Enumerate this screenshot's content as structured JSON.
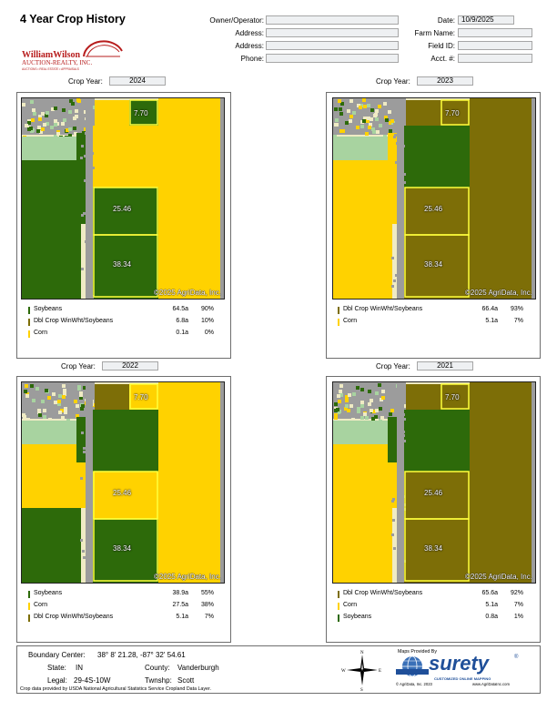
{
  "title": "4 Year Crop History",
  "header": {
    "left": [
      {
        "label": "Owner/Operator:",
        "value": ""
      },
      {
        "label": "Address:",
        "value": ""
      },
      {
        "label": "Address:",
        "value": ""
      },
      {
        "label": "Phone:",
        "value": ""
      }
    ],
    "right": [
      {
        "label": "Date:",
        "value": "10/9/2025"
      },
      {
        "label": "Farm Name:",
        "value": ""
      },
      {
        "label": "Field ID:",
        "value": ""
      },
      {
        "label": "Acct. #:",
        "value": ""
      }
    ]
  },
  "logo": {
    "line1": "WilliamWilson",
    "line2": "AUCTION-REALTY, INC.",
    "line3": "AUCTIONS • REAL ESTATE • APPRAISALS"
  },
  "crop_year_label": "Crop Year:",
  "copyright": "©2025 AgriData, Inc.",
  "field_labels": [
    "7.70",
    "25.46",
    "38.34"
  ],
  "panels": [
    {
      "year": "2024",
      "legend": [
        {
          "crop": "Soybeans",
          "acres": "64.5a",
          "pct": "90%",
          "color": "#2d6a0a"
        },
        {
          "crop": "Dbl Crop WinWht/Soybeans",
          "acres": "6.8a",
          "pct": "10%",
          "color": "#7d6e07"
        },
        {
          "crop": "Corn",
          "acres": "0.1a",
          "pct": "0%",
          "color": "#ffd200"
        }
      ]
    },
    {
      "year": "2023",
      "legend": [
        {
          "crop": "Dbl Crop WinWht/Soybeans",
          "acres": "66.4a",
          "pct": "93%",
          "color": "#7d6e07"
        },
        {
          "crop": "Corn",
          "acres": "5.1a",
          "pct": "7%",
          "color": "#ffd200"
        }
      ]
    },
    {
      "year": "2022",
      "legend": [
        {
          "crop": "Soybeans",
          "acres": "38.9a",
          "pct": "55%",
          "color": "#2d6a0a"
        },
        {
          "crop": "Corn",
          "acres": "27.5a",
          "pct": "38%",
          "color": "#ffd200"
        },
        {
          "crop": "Dbl Crop WinWht/Soybeans",
          "acres": "5.1a",
          "pct": "7%",
          "color": "#7d6e07"
        }
      ]
    },
    {
      "year": "2021",
      "legend": [
        {
          "crop": "Dbl Crop WinWht/Soybeans",
          "acres": "65.6a",
          "pct": "92%",
          "color": "#7d6e07"
        },
        {
          "crop": "Corn",
          "acres": "5.1a",
          "pct": "7%",
          "color": "#ffd200"
        },
        {
          "crop": "Soybeans",
          "acres": "0.8a",
          "pct": "1%",
          "color": "#2d6a0a"
        }
      ]
    }
  ],
  "footer": {
    "boundary_label": "Boundary Center:",
    "boundary_value": "38° 8' 21.28, -87° 32' 54.61",
    "state_label": "State:",
    "state_value": "IN",
    "county_label": "County:",
    "county_value": "Vanderburgh",
    "legal_label": "Legal:",
    "legal_value": "29-4S-10W",
    "twnshp_label": "Twnshp:",
    "twnshp_value": "Scott",
    "source_note": "Crop data provided by USDA National Agricultural Statistics Service Cropland Data Layer.",
    "maps_provided": "Maps Provided By",
    "surety": "surety",
    "surety_tagline": "CUSTOMIZED ONLINE MAPPING",
    "agridata_copy": "© AgriData, Inc. 2023",
    "agridata_url": "www.AgriDataInc.com",
    "compass": {
      "n": "N",
      "s": "S",
      "e": "E",
      "w": "W"
    }
  },
  "colors": {
    "soybeans": "#2d6a0a",
    "dbl_crop": "#7d6e07",
    "corn": "#ffd200",
    "developed": "#9c9c9c",
    "grass": "#a8d3a0",
    "open": "#efebc4",
    "boundary": "#ffff3c"
  }
}
